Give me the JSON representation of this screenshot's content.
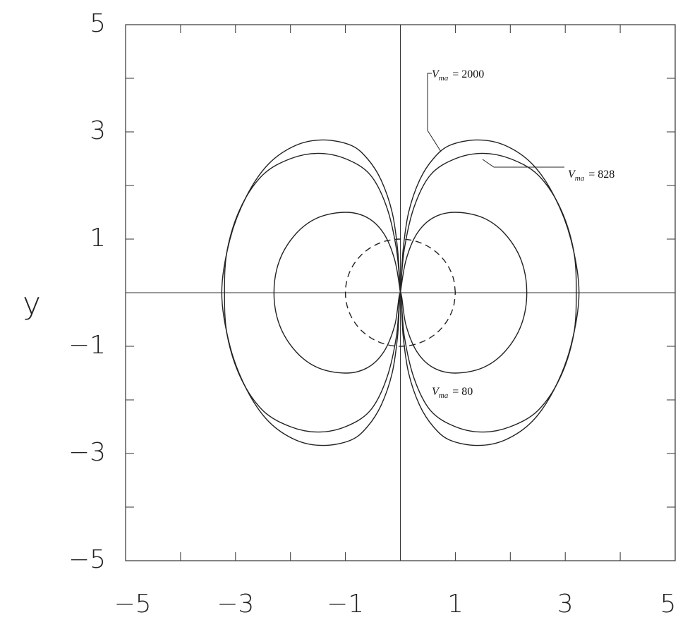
{
  "chart_data": {
    "type": "line",
    "ylabel": "y",
    "xlim": [
      -5,
      5
    ],
    "ylim": [
      -5,
      5
    ],
    "xticks": [
      {
        "value": -5,
        "label": "−5"
      },
      {
        "value": -3,
        "label": "−3"
      },
      {
        "value": -1,
        "label": "−1"
      },
      1,
      3,
      5
    ],
    "yticks": [
      {
        "value": -5,
        "label": "−5"
      },
      {
        "value": -3,
        "label": "−3"
      },
      {
        "value": -1,
        "label": "−1"
      },
      1,
      3,
      5
    ],
    "xminorticks": [
      -4,
      -2,
      0,
      2,
      4
    ],
    "yminorticks": [
      -4,
      -2,
      0,
      2,
      4
    ],
    "zero_axes": true,
    "series": [
      {
        "label": [
          "V",
          "ma",
          "= 2000"
        ],
        "color": "#222",
        "dashed": false,
        "x": [
          0,
          0.05,
          0.15,
          0.35,
          0.6,
          0.9,
          1.4,
          1.9,
          2.4,
          2.8,
          3.1,
          3.25,
          3.1,
          2.8,
          2.4,
          1.9,
          1.4,
          0.9,
          0.6,
          0.35,
          0.15,
          0.05,
          0,
          -0.05,
          -0.15,
          -0.35,
          -0.6,
          -0.9,
          -1.4,
          -1.9,
          -2.4,
          -2.8,
          -3.1,
          -3.25,
          -3.1,
          -2.8,
          -2.4,
          -1.9,
          -1.4,
          -0.9,
          -0.6,
          -0.35,
          -0.15,
          -0.05,
          0
        ],
        "y": [
          0,
          0.8,
          1.5,
          2.1,
          2.5,
          2.75,
          2.85,
          2.75,
          2.4,
          1.8,
          1.0,
          0,
          -1.0,
          -1.8,
          -2.4,
          -2.75,
          -2.85,
          -2.75,
          -2.5,
          -2.1,
          -1.5,
          -0.8,
          0,
          -0.8,
          -1.5,
          -2.1,
          -2.5,
          -2.75,
          -2.85,
          -2.75,
          -2.4,
          -1.8,
          -1.0,
          0,
          1.0,
          1.8,
          2.4,
          2.75,
          2.85,
          2.75,
          2.5,
          2.1,
          1.5,
          0.8,
          0
        ]
      },
      {
        "label": [
          "V",
          "ma",
          "= 828"
        ],
        "color": "#222",
        "dashed": false,
        "x": [
          0,
          0.07,
          0.25,
          0.55,
          1.0,
          1.5,
          2.0,
          2.5,
          2.9,
          3.15,
          3.2,
          3.15,
          2.9,
          2.5,
          2.0,
          1.5,
          1.0,
          0.55,
          0.25,
          0.07,
          0,
          -0.07,
          -0.25,
          -0.55,
          -1.0,
          -1.5,
          -2.0,
          -2.5,
          -2.9,
          -3.15,
          -3.2,
          -3.15,
          -2.9,
          -2.5,
          -2.0,
          -1.5,
          -1.0,
          -0.55,
          -0.25,
          -0.07,
          0
        ],
        "y": [
          0,
          0.8,
          1.6,
          2.2,
          2.5,
          2.6,
          2.5,
          2.2,
          1.6,
          0.8,
          0,
          -0.8,
          -1.6,
          -2.2,
          -2.5,
          -2.6,
          -2.5,
          -2.2,
          -1.6,
          -0.8,
          0,
          -0.8,
          -1.6,
          -2.2,
          -2.5,
          -2.6,
          -2.5,
          -2.2,
          -1.6,
          -0.8,
          0,
          0.8,
          1.6,
          2.2,
          2.5,
          2.6,
          2.5,
          2.2,
          1.6,
          0.8,
          0
        ]
      },
      {
        "label": [
          "V",
          "ma",
          "= 80"
        ],
        "color": "#222",
        "dashed": false,
        "x": [
          0,
          0.1,
          0.3,
          0.6,
          1.0,
          1.5,
          1.9,
          2.2,
          2.3,
          2.2,
          1.9,
          1.5,
          1.0,
          0.6,
          0.3,
          0.1,
          0,
          -0.1,
          -0.3,
          -0.6,
          -1.0,
          -1.5,
          -1.9,
          -2.2,
          -2.3,
          -2.2,
          -1.9,
          -1.5,
          -1.0,
          -0.6,
          -0.3,
          -0.1,
          0
        ],
        "y": [
          0,
          0.6,
          1.1,
          1.4,
          1.5,
          1.4,
          1.1,
          0.6,
          0,
          -0.6,
          -1.1,
          -1.4,
          -1.5,
          -1.4,
          -1.1,
          -0.6,
          0,
          -0.6,
          -1.1,
          -1.4,
          -1.5,
          -1.4,
          -1.1,
          -0.6,
          0,
          0.6,
          1.1,
          1.4,
          1.5,
          1.4,
          1.1,
          0.6,
          0
        ]
      },
      {
        "color": "#222",
        "dashed": true,
        "x": [
          1,
          0.966,
          0.866,
          0.707,
          0.5,
          0.259,
          0,
          -0.259,
          -0.5,
          -0.707,
          -0.866,
          -0.966,
          -1,
          -0.966,
          -0.866,
          -0.707,
          -0.5,
          -0.259,
          0,
          0.259,
          0.5,
          0.707,
          0.866,
          0.966,
          1
        ],
        "y": [
          0,
          0.259,
          0.5,
          0.707,
          0.866,
          0.966,
          1,
          0.966,
          0.866,
          0.707,
          0.5,
          0.259,
          0,
          -0.259,
          -0.5,
          -0.707,
          -0.866,
          -0.966,
          -1,
          -0.966,
          -0.866,
          -0.707,
          -0.5,
          -0.259,
          0
        ]
      }
    ]
  }
}
